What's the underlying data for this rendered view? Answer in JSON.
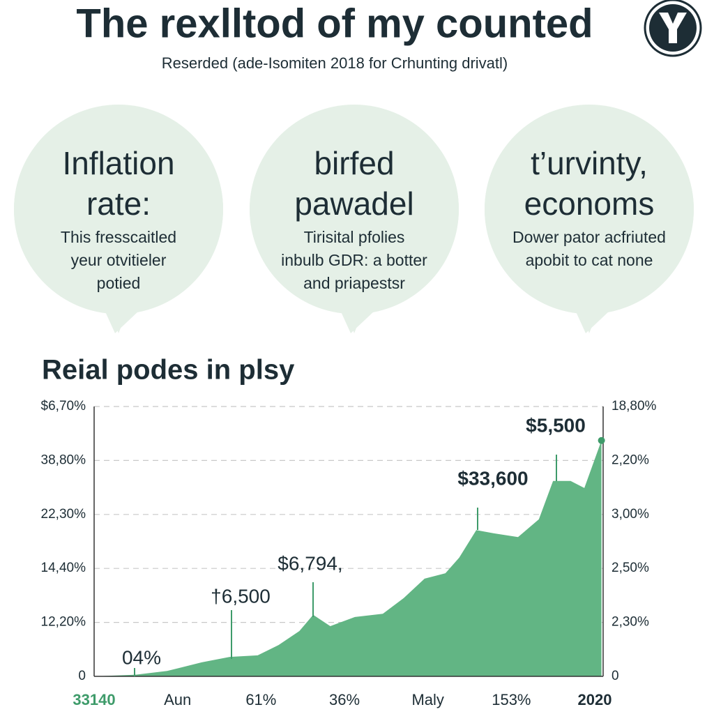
{
  "header": {
    "title": "The rexlltod of my counted",
    "subtitle": "Reserded (ade-Isomiten 2018 for Crhunting drivatl)"
  },
  "bubbles": [
    {
      "title": [
        "Inflation",
        "rate:"
      ],
      "body": [
        "This fresscaitled",
        "yeur otvitieler",
        "potied"
      ]
    },
    {
      "title": [
        "birfed",
        "pawadel"
      ],
      "body": [
        "Tirisital pfolies",
        "inbulb GDR: a botter",
        "and priapestsr"
      ]
    },
    {
      "title": [
        "t’urvinty,",
        "economs"
      ],
      "body": [
        "Dower pator acfriuted",
        "apobit to cat none"
      ]
    }
  ],
  "chart_data": {
    "type": "area",
    "title": "Reial podes in plsy",
    "color": "#62b584",
    "grid": true,
    "xlim": [
      0,
      6.1
    ],
    "xticks": [
      {
        "value": 0,
        "label": "33140"
      },
      {
        "value": 1,
        "label": "Aun"
      },
      {
        "value": 2,
        "label": "61%"
      },
      {
        "value": 3,
        "label": "36%"
      },
      {
        "value": 4,
        "label": "Maly"
      },
      {
        "value": 5,
        "label": "153%"
      },
      {
        "value": 6,
        "label": "2020"
      }
    ],
    "ylim": [
      0,
      5
    ],
    "yticks": [
      0,
      {
        "value": 1,
        "label": "12,20%"
      },
      {
        "value": 2,
        "label": "14,40%"
      },
      {
        "value": 3,
        "label": "22,30%"
      },
      {
        "value": 4,
        "label": "38,80%"
      },
      {
        "value": 5,
        "label": "$6,70%"
      }
    ],
    "y2lim": [
      0,
      5
    ],
    "y2ticks": [
      0,
      {
        "value": 1,
        "label": "2,30%"
      },
      {
        "value": 2,
        "label": "2,50%"
      },
      {
        "value": 3,
        "label": "3,00%"
      },
      {
        "value": 4,
        "label": "2,20%"
      },
      {
        "value": 5,
        "label": "18,80%"
      }
    ],
    "series": [
      {
        "x": [
          0,
          0.5,
          0.875,
          1.29,
          1.625,
          1.96,
          2.21,
          2.46,
          2.625,
          2.83,
          3.125,
          3.46,
          3.71,
          3.96,
          4.21,
          4.375,
          4.58,
          4.79,
          5.08,
          5.33,
          5.5,
          5.71,
          5.875,
          6.08
        ],
        "values": [
          0,
          0.03,
          0.1,
          0.26,
          0.36,
          0.39,
          0.58,
          0.84,
          1.14,
          0.93,
          1.1,
          1.16,
          1.45,
          1.81,
          1.91,
          2.2,
          2.71,
          2.65,
          2.58,
          2.91,
          3.62,
          3.62,
          3.49,
          4.37
        ]
      }
    ],
    "annotations": [
      "04%",
      "†6,500",
      "$6,794,",
      "$33,600",
      "$5,500"
    ]
  }
}
